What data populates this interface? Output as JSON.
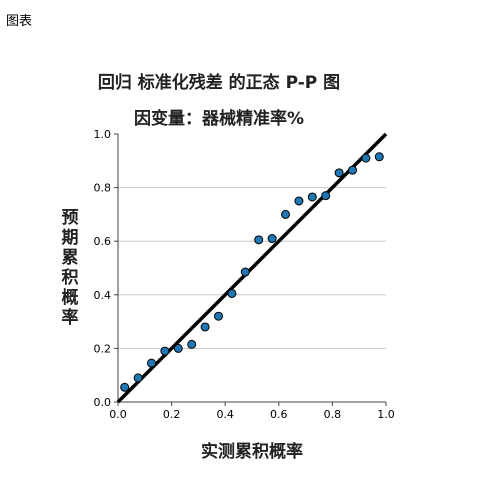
{
  "page": {
    "caption": "图表"
  },
  "chart_data": {
    "type": "scatter",
    "title": "回归 标准化残差 的正态 P-P 图",
    "subtitle": "因变量：器械精准率%",
    "xlabel": "实测累积概率",
    "ylabel": "预期累积概率",
    "xlim": [
      0.0,
      1.0
    ],
    "ylim": [
      0.0,
      1.0
    ],
    "xticks": [
      "0.0",
      "0.2",
      "0.4",
      "0.6",
      "0.8",
      "1.0"
    ],
    "yticks": [
      "0.0",
      "0.2",
      "0.4",
      "0.6",
      "0.8",
      "1.0"
    ],
    "grid": "horizontal",
    "reference_line": {
      "from": [
        0.0,
        0.0
      ],
      "to": [
        1.0,
        1.0
      ]
    },
    "marker_color": "#1f77b4",
    "points": [
      {
        "x": 0.025,
        "y": 0.055
      },
      {
        "x": 0.075,
        "y": 0.09
      },
      {
        "x": 0.125,
        "y": 0.145
      },
      {
        "x": 0.175,
        "y": 0.19
      },
      {
        "x": 0.225,
        "y": 0.2
      },
      {
        "x": 0.275,
        "y": 0.215
      },
      {
        "x": 0.325,
        "y": 0.28
      },
      {
        "x": 0.375,
        "y": 0.32
      },
      {
        "x": 0.425,
        "y": 0.405
      },
      {
        "x": 0.475,
        "y": 0.485
      },
      {
        "x": 0.525,
        "y": 0.605
      },
      {
        "x": 0.575,
        "y": 0.61
      },
      {
        "x": 0.625,
        "y": 0.7
      },
      {
        "x": 0.675,
        "y": 0.75
      },
      {
        "x": 0.725,
        "y": 0.765
      },
      {
        "x": 0.775,
        "y": 0.77
      },
      {
        "x": 0.825,
        "y": 0.855
      },
      {
        "x": 0.875,
        "y": 0.865
      },
      {
        "x": 0.925,
        "y": 0.91
      },
      {
        "x": 0.975,
        "y": 0.915
      }
    ]
  }
}
